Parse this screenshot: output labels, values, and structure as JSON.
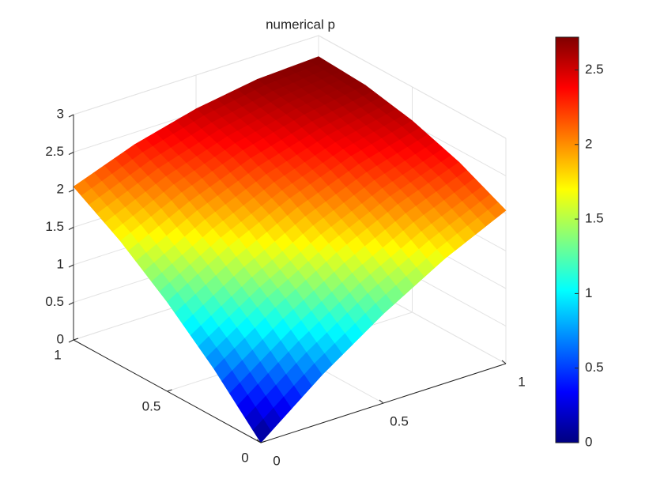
{
  "chart_data": {
    "type": "surface",
    "title": "numerical p",
    "x": [
      0,
      0.25,
      0.5,
      0.75,
      1
    ],
    "y": [
      0,
      0.25,
      0.5,
      0.75,
      1
    ],
    "z": [
      [
        0,
        0.64,
        1.19,
        1.66,
        2.04
      ],
      [
        0.64,
        1.19,
        1.66,
        2.04,
        2.34
      ],
      [
        1.19,
        1.66,
        2.04,
        2.34,
        2.55
      ],
      [
        1.66,
        2.04,
        2.34,
        2.55,
        2.68
      ],
      [
        2.04,
        2.34,
        2.55,
        2.68,
        2.72
      ]
    ],
    "colormap": "jet",
    "xlim": [
      0,
      1
    ],
    "xticks": [
      0,
      0.5,
      1
    ],
    "ylim": [
      0,
      1
    ],
    "yticks": [
      0,
      0.5,
      1
    ],
    "zlim": [
      0,
      3
    ],
    "zticks": [
      0,
      0.5,
      1,
      1.5,
      2,
      2.5,
      3
    ],
    "clim": [
      0,
      2.72
    ],
    "cticks": [
      0,
      0.5,
      1,
      1.5,
      2,
      2.5
    ],
    "grid": true
  }
}
